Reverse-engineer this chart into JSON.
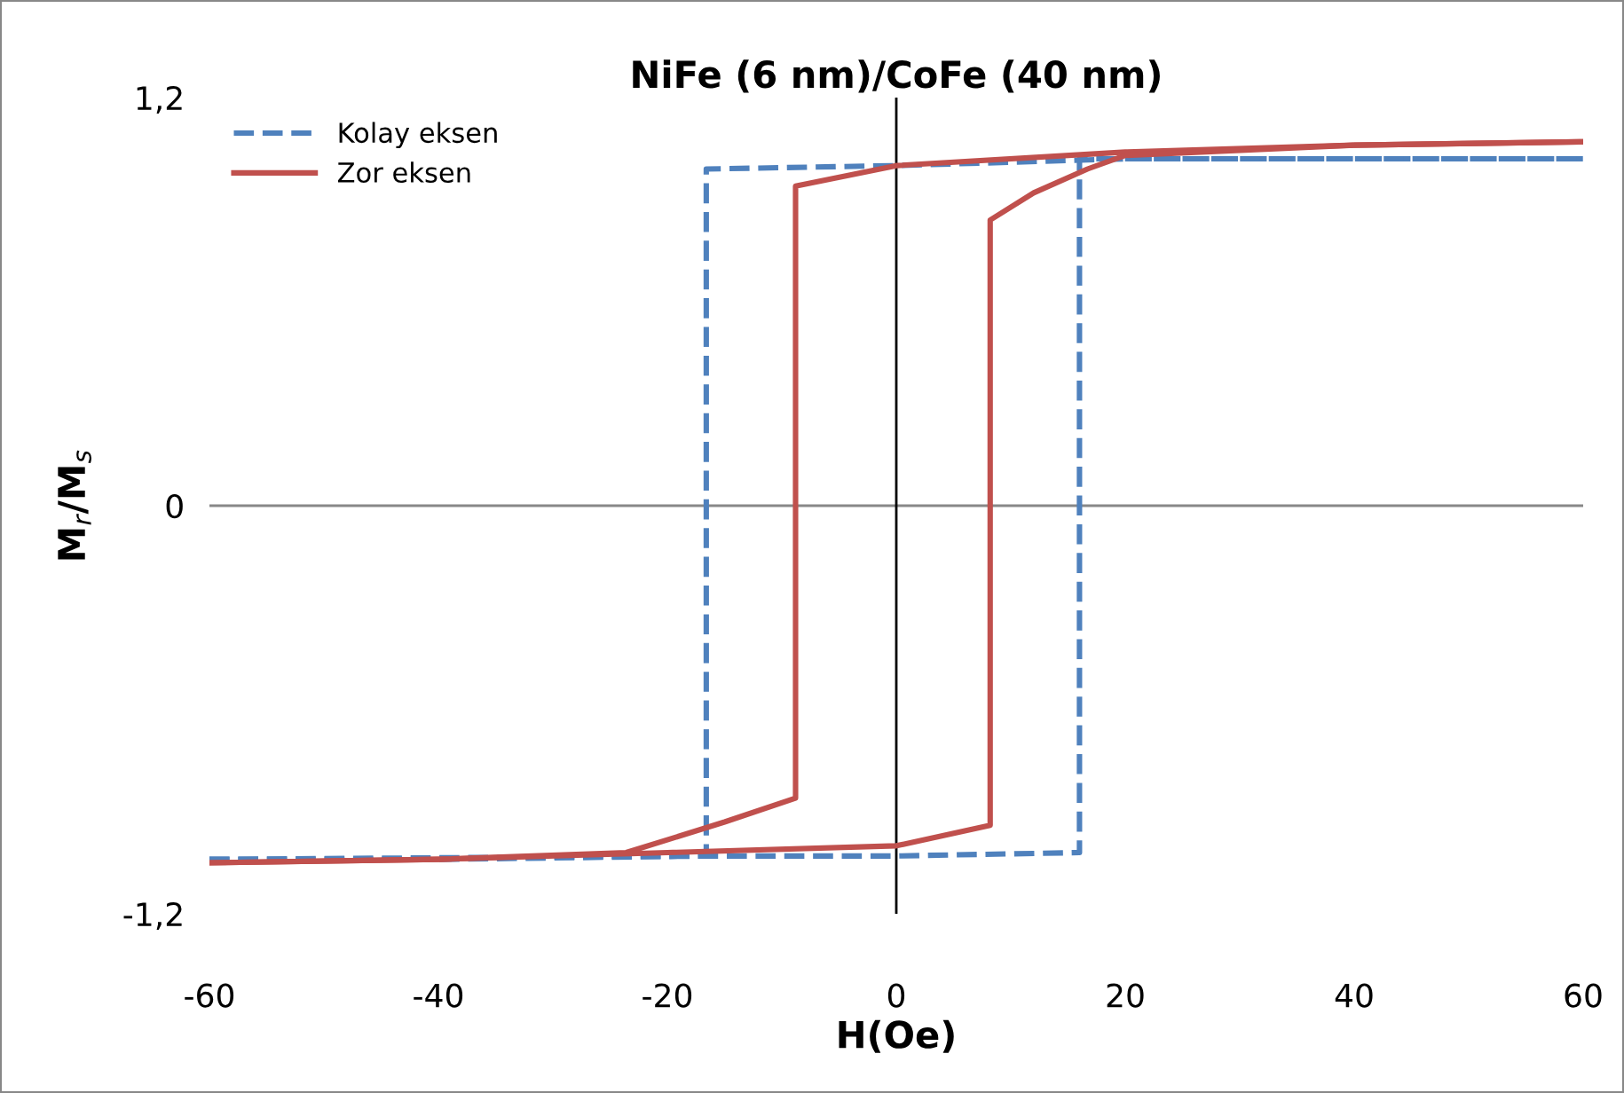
{
  "chart_data": {
    "type": "line",
    "title": "NiFe (6 nm)/CoFe (40 nm)",
    "xlabel": "H(Oe)",
    "ylabel": "M$_{r}$/M$_{s}$",
    "xlim": [
      -60,
      60
    ],
    "xticks": [
      -60,
      -40,
      -20,
      0,
      20,
      40,
      60
    ],
    "ylim": [
      -1.2,
      1.2
    ],
    "yticks": [
      {
        "value": -1.2,
        "label": "-1,2"
      },
      0,
      {
        "value": 1.2,
        "label": "1,2"
      }
    ],
    "grid": false,
    "legend": "top left",
    "ref_lines": [
      {
        "axis": "y",
        "value": 0,
        "color": "#888888"
      },
      {
        "axis": "x",
        "value": 0,
        "color": "#000000"
      }
    ],
    "series": [
      {
        "name": "Kolay eksen",
        "color": "#4f81bd",
        "line_style": "dashed",
        "x": [
          -60,
          -40,
          -16.6,
          -16.6,
          0,
          20,
          60
        ],
        "values": [
          -1.04,
          -1.04,
          -1.03,
          0.99,
          1.0,
          1.02,
          1.02
        ]
      },
      {
        "color": "#4f81bd",
        "line_style": "dashed",
        "x": [
          -60,
          -16.6,
          0,
          16,
          16,
          40,
          60
        ],
        "values": [
          -1.04,
          -1.03,
          -1.03,
          -1.02,
          1.02,
          1.02,
          1.02
        ]
      },
      {
        "name": "Zor eksen",
        "color": "#c0504d",
        "line_style": "solid",
        "x": [
          -60,
          -40,
          -23.6,
          -15,
          -8.8,
          -8.8,
          0,
          20,
          40,
          60
        ],
        "values": [
          -1.05,
          -1.04,
          -1.02,
          -0.93,
          -0.86,
          0.94,
          1.0,
          1.04,
          1.06,
          1.07
        ]
      },
      {
        "color": "#c0504d",
        "line_style": "solid",
        "x": [
          -60,
          -40,
          -20,
          0,
          8.2,
          8.2,
          12,
          16.7,
          20,
          40,
          60
        ],
        "values": [
          -1.05,
          -1.04,
          -1.02,
          -1.0,
          -0.94,
          0.84,
          0.92,
          0.99,
          1.03,
          1.06,
          1.07
        ]
      }
    ]
  }
}
